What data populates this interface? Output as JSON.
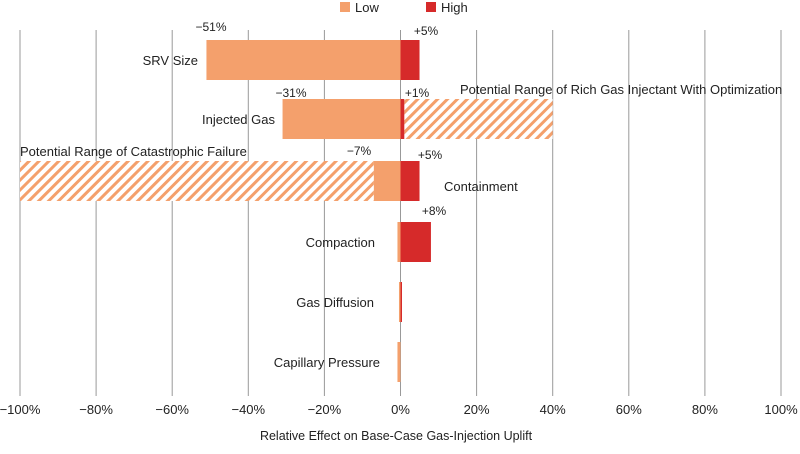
{
  "chart_data": {
    "type": "bar",
    "orientation": "horizontal",
    "xlabel": "Relative Effect on Base-Case Gas-Injection Uplift",
    "xlim": [
      -100,
      100
    ],
    "xticks": [
      -100,
      -80,
      -60,
      -40,
      -20,
      0,
      20,
      40,
      60,
      80,
      100
    ],
    "xtick_labels": [
      "−100%",
      "−80%",
      "−60%",
      "−40%",
      "−20%",
      "0%",
      "20%",
      "40%",
      "60%",
      "80%",
      "100%"
    ],
    "grid": true,
    "legend_position": "top-center",
    "categories": [
      "SRV Size",
      "Injected Gas",
      "Containment",
      "Compaction",
      "Gas Diffusion",
      "Capillary Pressure"
    ],
    "series": [
      {
        "name": "Low",
        "color": "#f4a06c",
        "values": [
          -51,
          -31,
          -7,
          -0.8,
          -0.4,
          -0.8
        ]
      },
      {
        "name": "High",
        "color": "#d62a2a",
        "values": [
          5,
          1,
          5,
          8,
          0.3,
          0
        ]
      }
    ],
    "data_labels": {
      "low": [
        "−51%",
        "−31%",
        "−7%",
        "",
        "",
        ""
      ],
      "high": [
        "+5%",
        "+1%",
        "+5%",
        "+8%",
        "",
        ""
      ]
    },
    "range_annotations": [
      {
        "category": "Injected Gas",
        "from": 1,
        "to": 40,
        "label": "Potential Range of Rich Gas Injectant With Optimization",
        "pattern": "hatched",
        "color": "#f4a06c"
      },
      {
        "category": "Containment",
        "from": -100,
        "to": -7,
        "label": "Potential Range of Catastrophic Failure",
        "pattern": "hatched",
        "color": "#f4a06c"
      }
    ]
  }
}
